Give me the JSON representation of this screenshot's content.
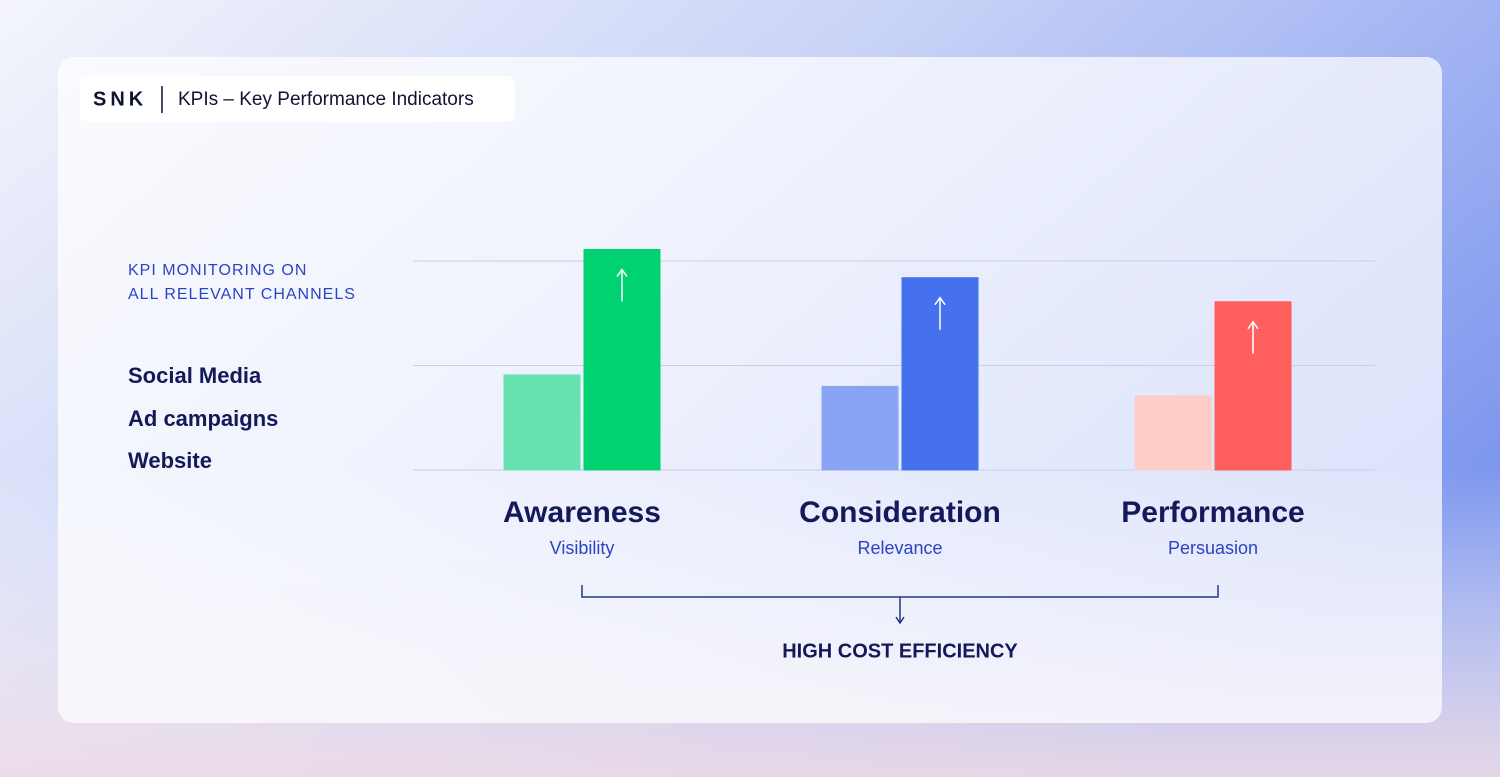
{
  "header": {
    "brand": "SNK",
    "title": "KPIs – Key Performance Indicators"
  },
  "sidebar": {
    "heading": [
      "KPI MONITORING ON",
      "ALL RELEVANT CHANNELS"
    ],
    "channels": [
      "Social Media",
      "Ad campaigns",
      "Website"
    ]
  },
  "chart_data": {
    "type": "bar",
    "categories": [
      "Awareness",
      "Consideration",
      "Performance"
    ],
    "subtitles": [
      "Visibility",
      "Relevance",
      "Persuasion"
    ],
    "series": [
      {
        "colors": [
          "#66e3b0",
          "#8aa4f5",
          "#ffcdc8"
        ],
        "values": [
          0.91,
          0.8,
          0.71
        ]
      },
      {
        "colors": [
          "#00d272",
          "#4570ee",
          "#fe5f5c"
        ],
        "values": [
          2.11,
          1.84,
          1.61
        ]
      }
    ],
    "ylim": [
      0,
      2
    ],
    "gridlines": [
      0,
      1,
      2
    ],
    "grid": true,
    "footer": "HIGH COST EFFICIENCY"
  }
}
